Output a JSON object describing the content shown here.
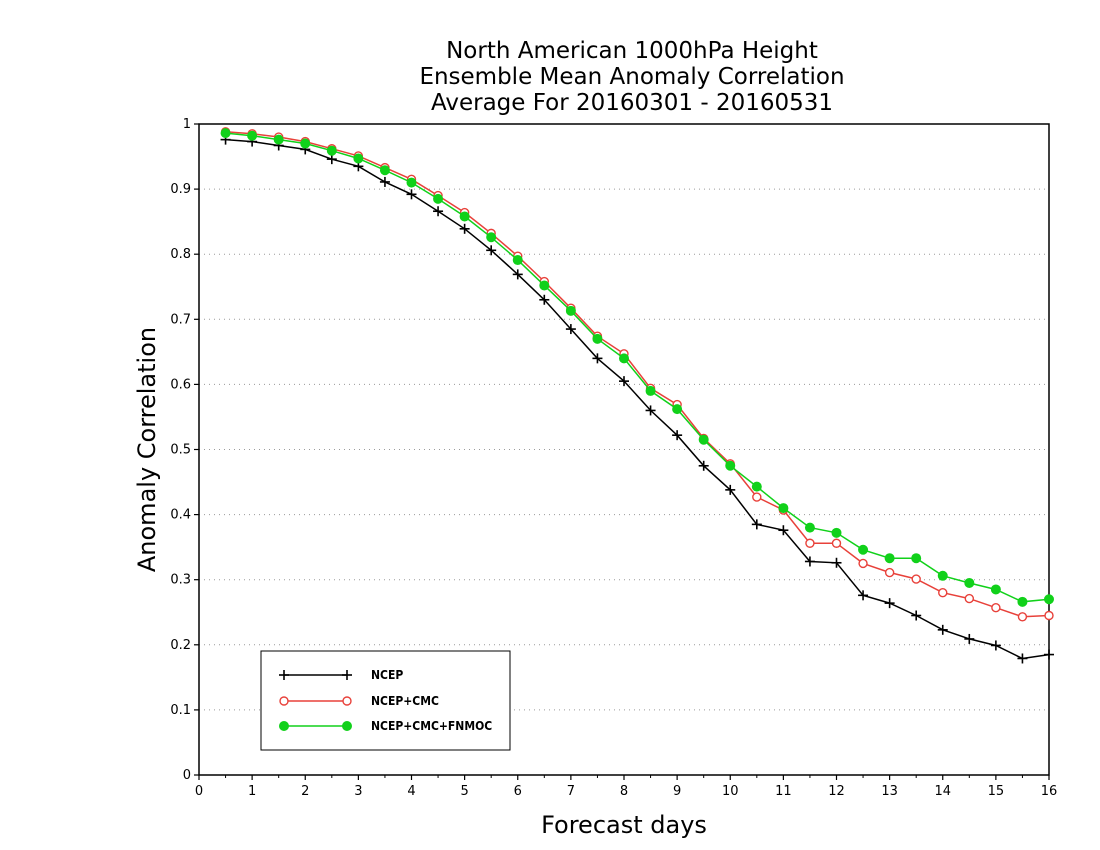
{
  "chart_data": {
    "type": "line",
    "title_lines": [
      "North American 1000hPa Height",
      "Ensemble Mean Anomaly Correlation",
      "Average For 20160301 - 20160531"
    ],
    "xlabel": "Forecast days",
    "ylabel": "Anomaly Correlation",
    "xlim": [
      0,
      16
    ],
    "ylim": [
      0,
      1
    ],
    "xticks": [
      "0",
      "1",
      "2",
      "3",
      "4",
      "5",
      "6",
      "7",
      "8",
      "9",
      "10",
      "11",
      "12",
      "13",
      "14",
      "15",
      "16"
    ],
    "yticks": [
      "0",
      "0.1",
      "0.2",
      "0.3",
      "0.4",
      "0.5",
      "0.6",
      "0.7",
      "0.8",
      "0.9",
      "1"
    ],
    "grid": "horizontal-dotted",
    "legend_position": "bottom-left",
    "x": [
      0.5,
      1,
      1.5,
      2,
      2.5,
      3,
      3.5,
      4,
      4.5,
      5,
      5.5,
      6,
      6.5,
      7,
      7.5,
      8,
      8.5,
      9,
      9.5,
      10,
      10.5,
      11,
      11.5,
      12,
      12.5,
      13,
      13.5,
      14,
      14.5,
      15,
      15.5,
      16
    ],
    "series": [
      {
        "name": "NCEP",
        "color": "#000000",
        "marker": "plus",
        "values": [
          0.976,
          0.973,
          0.967,
          0.961,
          0.946,
          0.935,
          0.911,
          0.892,
          0.866,
          0.839,
          0.806,
          0.769,
          0.73,
          0.685,
          0.64,
          0.605,
          0.56,
          0.522,
          0.475,
          0.438,
          0.385,
          0.376,
          0.328,
          0.326,
          0.276,
          0.264,
          0.245,
          0.223,
          0.209,
          0.199,
          0.179,
          0.185
        ]
      },
      {
        "name": "NCEP+CMC",
        "color": "#e8413a",
        "marker": "open-circle",
        "values": [
          0.988,
          0.985,
          0.98,
          0.973,
          0.962,
          0.951,
          0.933,
          0.915,
          0.89,
          0.864,
          0.832,
          0.797,
          0.758,
          0.717,
          0.674,
          0.647,
          0.594,
          0.569,
          0.517,
          0.478,
          0.427,
          0.407,
          0.356,
          0.356,
          0.325,
          0.311,
          0.301,
          0.28,
          0.271,
          0.257,
          0.243,
          0.245
        ]
      },
      {
        "name": "NCEP+CMC+FNMOC",
        "color": "#11d11a",
        "marker": "filled-circle",
        "values": [
          0.986,
          0.982,
          0.976,
          0.97,
          0.959,
          0.947,
          0.929,
          0.91,
          0.885,
          0.858,
          0.826,
          0.791,
          0.752,
          0.713,
          0.67,
          0.64,
          0.59,
          0.562,
          0.515,
          0.475,
          0.443,
          0.41,
          0.38,
          0.372,
          0.346,
          0.333,
          0.333,
          0.306,
          0.295,
          0.285,
          0.266,
          0.27
        ]
      }
    ]
  }
}
